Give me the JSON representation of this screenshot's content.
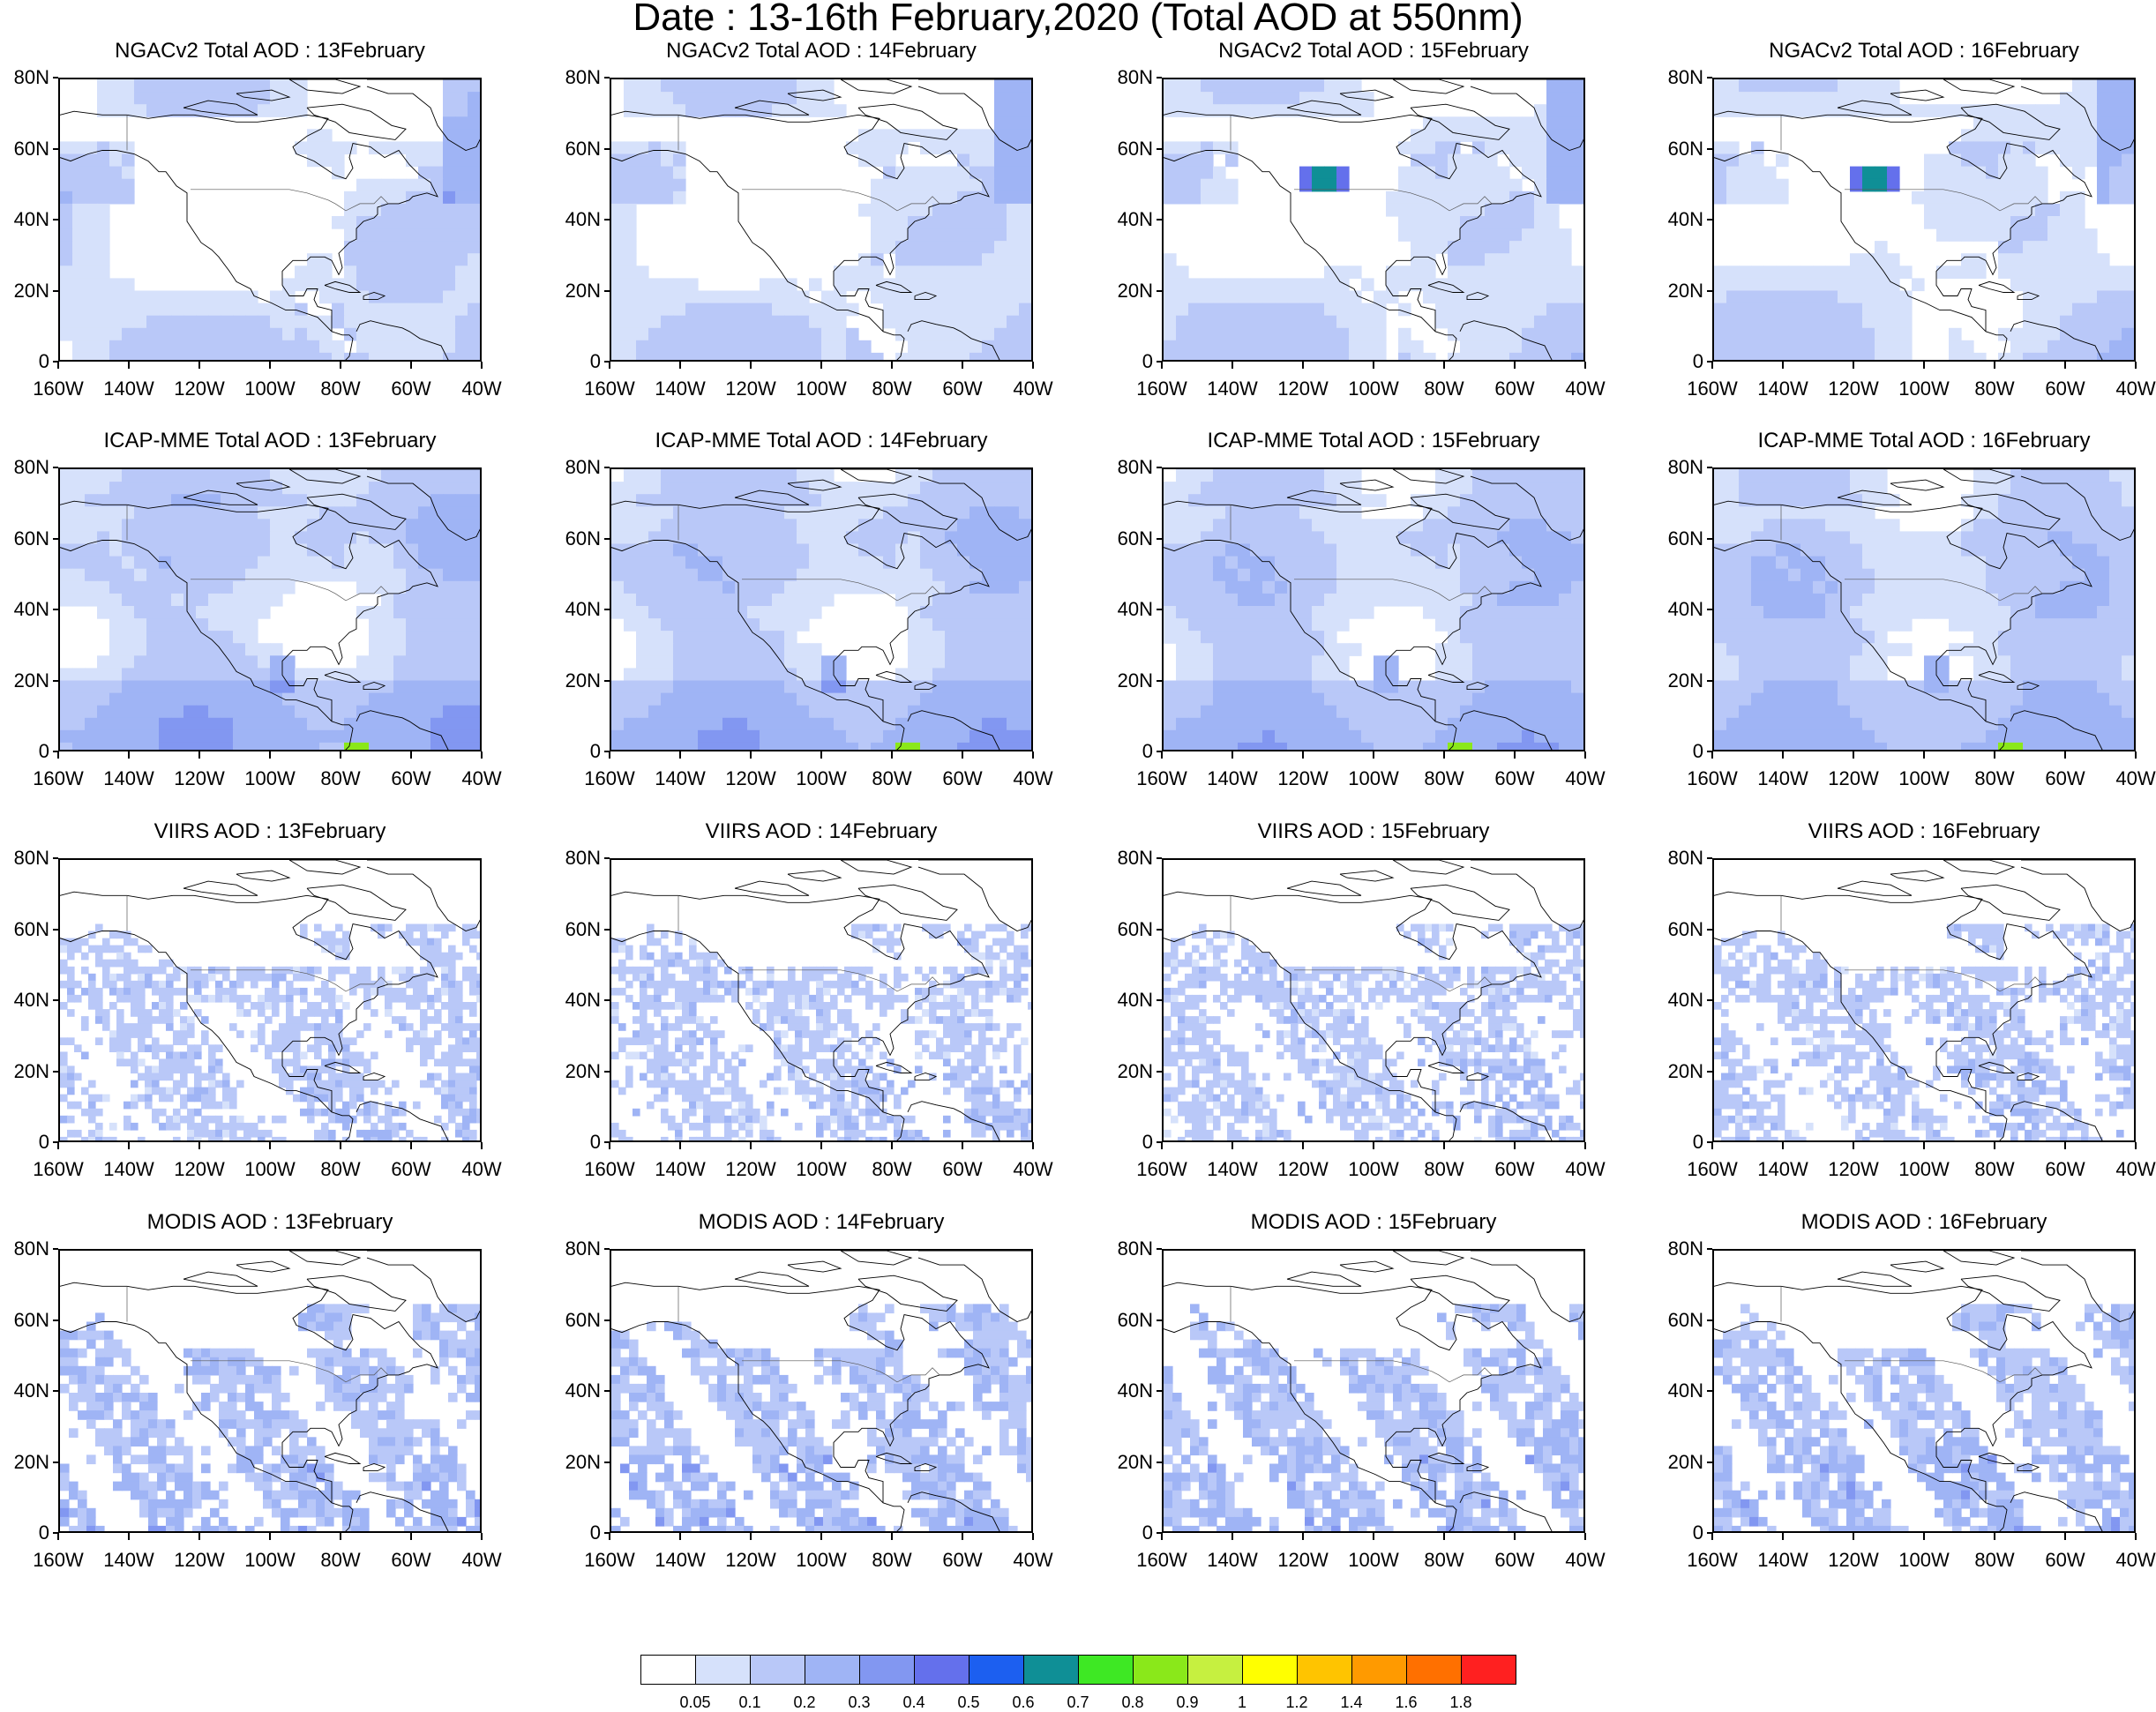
{
  "title": "Date : 13-16th February,2020 (Total AOD at 550nm)",
  "lat_labels": [
    "80N",
    "60N",
    "40N",
    "20N",
    "0"
  ],
  "lon_labels": [
    "160W",
    "140W",
    "120W",
    "100W",
    "80W",
    "60W",
    "40W"
  ],
  "panels": [
    {
      "title": "NGACv2 Total AOD : 13February",
      "model": "NGACv2",
      "day": 13
    },
    {
      "title": "NGACv2 Total AOD : 14February",
      "model": "NGACv2",
      "day": 14
    },
    {
      "title": "NGACv2 Total AOD : 15February",
      "model": "NGACv2",
      "day": 15
    },
    {
      "title": "NGACv2 Total AOD : 16February",
      "model": "NGACv2",
      "day": 16
    },
    {
      "title": "ICAP-MME Total AOD : 13February",
      "model": "ICAP-MME",
      "day": 13
    },
    {
      "title": "ICAP-MME Total AOD : 14February",
      "model": "ICAP-MME",
      "day": 14
    },
    {
      "title": "ICAP-MME Total AOD : 15February",
      "model": "ICAP-MME",
      "day": 15
    },
    {
      "title": "ICAP-MME Total AOD : 16February",
      "model": "ICAP-MME",
      "day": 16
    },
    {
      "title": "VIIRS AOD : 13February",
      "model": "VIIRS",
      "day": 13
    },
    {
      "title": "VIIRS AOD : 14February",
      "model": "VIIRS",
      "day": 14
    },
    {
      "title": "VIIRS AOD : 15February",
      "model": "VIIRS",
      "day": 15
    },
    {
      "title": "VIIRS AOD : 16February",
      "model": "VIIRS",
      "day": 16
    },
    {
      "title": "MODIS AOD : 13February",
      "model": "MODIS",
      "day": 13
    },
    {
      "title": "MODIS AOD : 14February",
      "model": "MODIS",
      "day": 14
    },
    {
      "title": "MODIS AOD : 15February",
      "model": "MODIS",
      "day": 15
    },
    {
      "title": "MODIS AOD : 16February",
      "model": "MODIS",
      "day": 16
    }
  ],
  "colorbar": {
    "labels": [
      "0.05",
      "0.1",
      "0.2",
      "0.3",
      "0.4",
      "0.5",
      "0.6",
      "0.7",
      "0.8",
      "0.9",
      "1",
      "1.2",
      "1.4",
      "1.6",
      "1.8"
    ],
    "colors": [
      "#ffffff",
      "#d6e1fb",
      "#b9c8f8",
      "#9fb4f5",
      "#8297f1",
      "#6470ec",
      "#1c5ff0",
      "#0f8f96",
      "#3ee824",
      "#8ae81a",
      "#c6f040",
      "#ffff00",
      "#ffc400",
      "#ff9a00",
      "#ff7000",
      "#ff2020"
    ]
  }
}
